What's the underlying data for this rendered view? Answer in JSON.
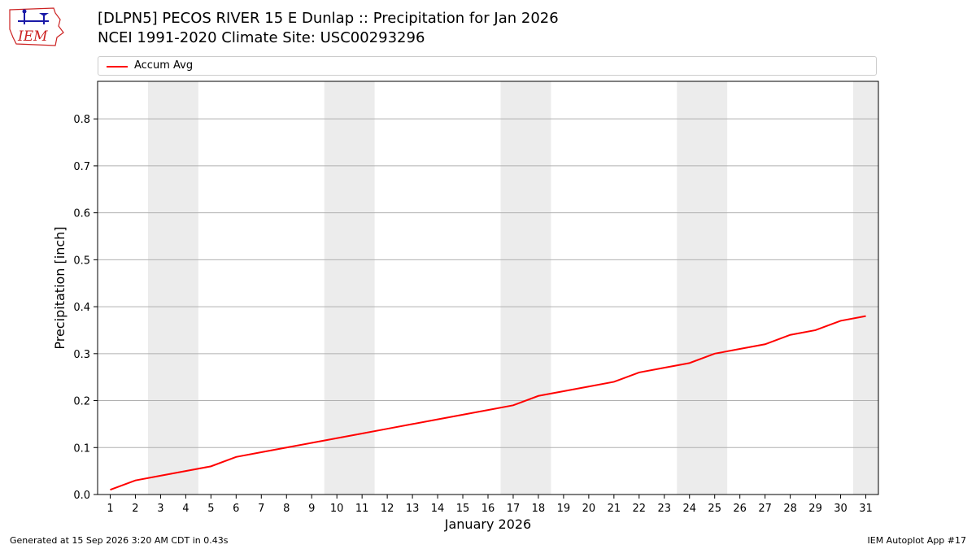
{
  "header": {
    "title_line1": "[DLPN5] PECOS RIVER 15 E Dunlap :: Precipitation for Jan 2026",
    "title_line2": "NCEI 1991-2020 Climate Site: USC00293296"
  },
  "logo": {
    "text": "IEM"
  },
  "footer": {
    "generated": "Generated at 15 Sep 2026 3:20 AM CDT in 0.43s",
    "app": "IEM Autoplot App #17"
  },
  "colors": {
    "series": "#ff0000",
    "weekend_band": "#ececec",
    "grid": "#b0b0b0",
    "logo_red": "#cc2222",
    "logo_blue": "#1a1aa8"
  },
  "chart_data": {
    "type": "line",
    "xlabel": "January 2026",
    "ylabel": "Precipitation [inch]",
    "ylim": [
      0,
      0.88
    ],
    "yticks": [
      0.0,
      0.1,
      0.2,
      0.3,
      0.4,
      0.5,
      0.6,
      0.7,
      0.8
    ],
    "ytick_labels": [
      "0.0",
      "0.1",
      "0.2",
      "0.3",
      "0.4",
      "0.5",
      "0.6",
      "0.7",
      "0.8"
    ],
    "xlim": [
      0.5,
      31.5
    ],
    "x": [
      1,
      2,
      3,
      4,
      5,
      6,
      7,
      8,
      9,
      10,
      11,
      12,
      13,
      14,
      15,
      16,
      17,
      18,
      19,
      20,
      21,
      22,
      23,
      24,
      25,
      26,
      27,
      28,
      29,
      30,
      31
    ],
    "xtick_labels": [
      "1",
      "2",
      "3",
      "4",
      "5",
      "6",
      "7",
      "8",
      "9",
      "10",
      "11",
      "12",
      "13",
      "14",
      "15",
      "16",
      "17",
      "18",
      "19",
      "20",
      "21",
      "22",
      "23",
      "24",
      "25",
      "26",
      "27",
      "28",
      "29",
      "30",
      "31"
    ],
    "weekend_bands": [
      [
        3,
        4
      ],
      [
        10,
        11
      ],
      [
        17,
        18
      ],
      [
        24,
        25
      ],
      [
        31,
        31
      ]
    ],
    "grid": "horizontal",
    "legend_position": "top",
    "series": [
      {
        "name": "Accum Avg",
        "values": [
          0.01,
          0.03,
          0.04,
          0.05,
          0.06,
          0.08,
          0.09,
          0.1,
          0.11,
          0.12,
          0.13,
          0.14,
          0.15,
          0.16,
          0.17,
          0.18,
          0.19,
          0.21,
          0.22,
          0.23,
          0.24,
          0.26,
          0.27,
          0.28,
          0.3,
          0.31,
          0.32,
          0.34,
          0.35,
          0.37,
          0.38
        ]
      }
    ]
  }
}
